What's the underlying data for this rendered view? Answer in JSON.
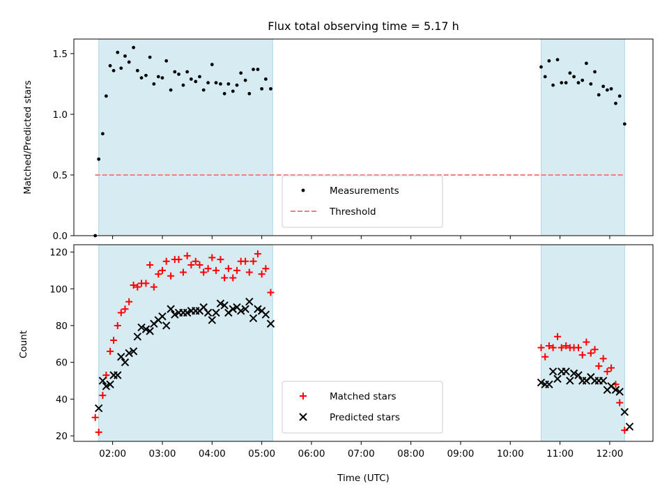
{
  "chart_data": [
    {
      "type": "scatter",
      "title": "Flux total observing time = 5.17 h",
      "xlabel": "",
      "ylabel": "Matched/Predicted stars",
      "ylim": [
        0,
        1.62
      ],
      "yticks": [
        0.0,
        0.5,
        1.0,
        1.5
      ],
      "ytick_labels": [
        "0.0",
        "0.5",
        "1.0",
        "1.5"
      ],
      "xlim": [
        1.22,
        12.87
      ],
      "xticks": [
        2,
        3,
        4,
        5,
        6,
        7,
        8,
        9,
        10,
        11,
        12
      ],
      "grid": false,
      "legend_position": "lower-center",
      "shaded_intervals": [
        [
          1.72,
          5.22
        ],
        [
          10.62,
          12.3
        ]
      ],
      "threshold": {
        "name": "Threshold",
        "value": 0.5,
        "x_range": [
          1.65,
          12.3
        ],
        "color": "#f08080"
      },
      "series": [
        {
          "name": "Measurements",
          "color": "#000000",
          "marker": "dot",
          "points": [
            [
              1.65,
              0.0
            ],
            [
              1.72,
              0.63
            ],
            [
              1.8,
              0.84
            ],
            [
              1.87,
              1.15
            ],
            [
              1.95,
              1.4
            ],
            [
              2.02,
              1.36
            ],
            [
              2.1,
              1.51
            ],
            [
              2.17,
              1.38
            ],
            [
              2.25,
              1.48
            ],
            [
              2.33,
              1.43
            ],
            [
              2.42,
              1.55
            ],
            [
              2.5,
              1.36
            ],
            [
              2.58,
              1.3
            ],
            [
              2.67,
              1.32
            ],
            [
              2.75,
              1.47
            ],
            [
              2.83,
              1.25
            ],
            [
              2.92,
              1.31
            ],
            [
              3.0,
              1.3
            ],
            [
              3.08,
              1.44
            ],
            [
              3.17,
              1.2
            ],
            [
              3.25,
              1.35
            ],
            [
              3.33,
              1.33
            ],
            [
              3.42,
              1.24
            ],
            [
              3.5,
              1.35
            ],
            [
              3.58,
              1.29
            ],
            [
              3.67,
              1.27
            ],
            [
              3.75,
              1.31
            ],
            [
              3.83,
              1.2
            ],
            [
              3.92,
              1.26
            ],
            [
              4.0,
              1.41
            ],
            [
              4.08,
              1.26
            ],
            [
              4.17,
              1.25
            ],
            [
              4.25,
              1.17
            ],
            [
              4.33,
              1.25
            ],
            [
              4.42,
              1.19
            ],
            [
              4.5,
              1.24
            ],
            [
              4.58,
              1.34
            ],
            [
              4.67,
              1.28
            ],
            [
              4.75,
              1.17
            ],
            [
              4.83,
              1.37
            ],
            [
              4.92,
              1.37
            ],
            [
              5.0,
              1.21
            ],
            [
              5.08,
              1.29
            ],
            [
              5.18,
              1.21
            ],
            [
              10.62,
              1.39
            ],
            [
              10.7,
              1.31
            ],
            [
              10.78,
              1.44
            ],
            [
              10.86,
              1.24
            ],
            [
              10.95,
              1.45
            ],
            [
              11.03,
              1.26
            ],
            [
              11.12,
              1.26
            ],
            [
              11.2,
              1.34
            ],
            [
              11.28,
              1.31
            ],
            [
              11.37,
              1.26
            ],
            [
              11.45,
              1.28
            ],
            [
              11.53,
              1.42
            ],
            [
              11.62,
              1.25
            ],
            [
              11.7,
              1.35
            ],
            [
              11.78,
              1.16
            ],
            [
              11.87,
              1.23
            ],
            [
              11.95,
              1.2
            ],
            [
              12.03,
              1.21
            ],
            [
              12.12,
              1.09
            ],
            [
              12.2,
              1.15
            ],
            [
              12.3,
              0.92
            ]
          ]
        }
      ]
    },
    {
      "type": "scatter",
      "title": "",
      "xlabel": "Time (UTC)",
      "ylabel": "Count",
      "ylim": [
        17,
        124
      ],
      "yticks": [
        20,
        40,
        60,
        80,
        100,
        120
      ],
      "ytick_labels": [
        "20",
        "40",
        "60",
        "80",
        "100",
        "120"
      ],
      "xlim": [
        1.22,
        12.87
      ],
      "xticks": [
        2,
        3,
        4,
        5,
        6,
        7,
        8,
        9,
        10,
        11,
        12
      ],
      "xtick_labels": [
        "02:00",
        "03:00",
        "04:00",
        "05:00",
        "06:00",
        "07:00",
        "08:00",
        "09:00",
        "10:00",
        "11:00",
        "12:00"
      ],
      "grid": false,
      "legend_position": "lower-center",
      "shaded_intervals": [
        [
          1.72,
          5.22
        ],
        [
          10.62,
          12.3
        ]
      ],
      "series": [
        {
          "name": "Matched stars",
          "color": "#ff0000",
          "marker": "plus",
          "points": [
            [
              1.65,
              30
            ],
            [
              1.72,
              22
            ],
            [
              1.8,
              42
            ],
            [
              1.87,
              53
            ],
            [
              1.95,
              66
            ],
            [
              2.02,
              72
            ],
            [
              2.1,
              80
            ],
            [
              2.17,
              87
            ],
            [
              2.25,
              89
            ],
            [
              2.33,
              93
            ],
            [
              2.42,
              102
            ],
            [
              2.5,
              101
            ],
            [
              2.58,
              103
            ],
            [
              2.67,
              103
            ],
            [
              2.75,
              113
            ],
            [
              2.83,
              101
            ],
            [
              2.92,
              108
            ],
            [
              3.0,
              110
            ],
            [
              3.08,
              115
            ],
            [
              3.17,
              107
            ],
            [
              3.25,
              116
            ],
            [
              3.33,
              116
            ],
            [
              3.42,
              109
            ],
            [
              3.5,
              118
            ],
            [
              3.58,
              113
            ],
            [
              3.67,
              115
            ],
            [
              3.75,
              113
            ],
            [
              3.83,
              109
            ],
            [
              3.92,
              111
            ],
            [
              4.0,
              117
            ],
            [
              4.08,
              110
            ],
            [
              4.17,
              116
            ],
            [
              4.25,
              106
            ],
            [
              4.33,
              111
            ],
            [
              4.42,
              106
            ],
            [
              4.5,
              110
            ],
            [
              4.58,
              115
            ],
            [
              4.67,
              115
            ],
            [
              4.75,
              109
            ],
            [
              4.83,
              115
            ],
            [
              4.92,
              119
            ],
            [
              5.0,
              108
            ],
            [
              5.08,
              111
            ],
            [
              5.18,
              98
            ],
            [
              10.62,
              68
            ],
            [
              10.7,
              63
            ],
            [
              10.78,
              69
            ],
            [
              10.86,
              68
            ],
            [
              10.95,
              74
            ],
            [
              11.03,
              68
            ],
            [
              11.12,
              69
            ],
            [
              11.2,
              68
            ],
            [
              11.28,
              68
            ],
            [
              11.37,
              68
            ],
            [
              11.45,
              64
            ],
            [
              11.53,
              71
            ],
            [
              11.62,
              65
            ],
            [
              11.7,
              67
            ],
            [
              11.78,
              58
            ],
            [
              11.87,
              62
            ],
            [
              11.95,
              55
            ],
            [
              12.03,
              57
            ],
            [
              12.12,
              48
            ],
            [
              12.2,
              38
            ],
            [
              12.3,
              23
            ]
          ]
        },
        {
          "name": "Predicted stars",
          "color": "#000000",
          "marker": "x",
          "points": [
            [
              1.72,
              35
            ],
            [
              1.8,
              50
            ],
            [
              1.87,
              47
            ],
            [
              1.95,
              48
            ],
            [
              2.02,
              53
            ],
            [
              2.1,
              53
            ],
            [
              2.17,
              63
            ],
            [
              2.25,
              60
            ],
            [
              2.33,
              65
            ],
            [
              2.42,
              66
            ],
            [
              2.5,
              74
            ],
            [
              2.58,
              79
            ],
            [
              2.67,
              78
            ],
            [
              2.75,
              77
            ],
            [
              2.83,
              81
            ],
            [
              2.92,
              83
            ],
            [
              3.0,
              85
            ],
            [
              3.08,
              80
            ],
            [
              3.17,
              89
            ],
            [
              3.25,
              86
            ],
            [
              3.33,
              87
            ],
            [
              3.42,
              87
            ],
            [
              3.5,
              87
            ],
            [
              3.58,
              88
            ],
            [
              3.67,
              88
            ],
            [
              3.75,
              88
            ],
            [
              3.83,
              90
            ],
            [
              3.92,
              87
            ],
            [
              4.0,
              83
            ],
            [
              4.08,
              87
            ],
            [
              4.17,
              92
            ],
            [
              4.25,
              91
            ],
            [
              4.33,
              87
            ],
            [
              4.42,
              89
            ],
            [
              4.5,
              90
            ],
            [
              4.58,
              88
            ],
            [
              4.67,
              89
            ],
            [
              4.75,
              93
            ],
            [
              4.83,
              84
            ],
            [
              4.92,
              89
            ],
            [
              5.0,
              88
            ],
            [
              5.08,
              86
            ],
            [
              5.18,
              81
            ],
            [
              10.62,
              49
            ],
            [
              10.7,
              48
            ],
            [
              10.78,
              48
            ],
            [
              10.86,
              55
            ],
            [
              10.95,
              51
            ],
            [
              11.03,
              55
            ],
            [
              11.12,
              55
            ],
            [
              11.2,
              50
            ],
            [
              11.28,
              54
            ],
            [
              11.37,
              53
            ],
            [
              11.45,
              50
            ],
            [
              11.53,
              50
            ],
            [
              11.62,
              52
            ],
            [
              11.7,
              50
            ],
            [
              11.78,
              50
            ],
            [
              11.87,
              50
            ],
            [
              11.95,
              45
            ],
            [
              12.03,
              47
            ],
            [
              12.12,
              45
            ],
            [
              12.2,
              44
            ],
            [
              12.3,
              33
            ],
            [
              12.4,
              25
            ]
          ]
        }
      ]
    }
  ],
  "colors": {
    "shade": "#add8e6",
    "axes": "#000000",
    "background": "#ffffff"
  }
}
